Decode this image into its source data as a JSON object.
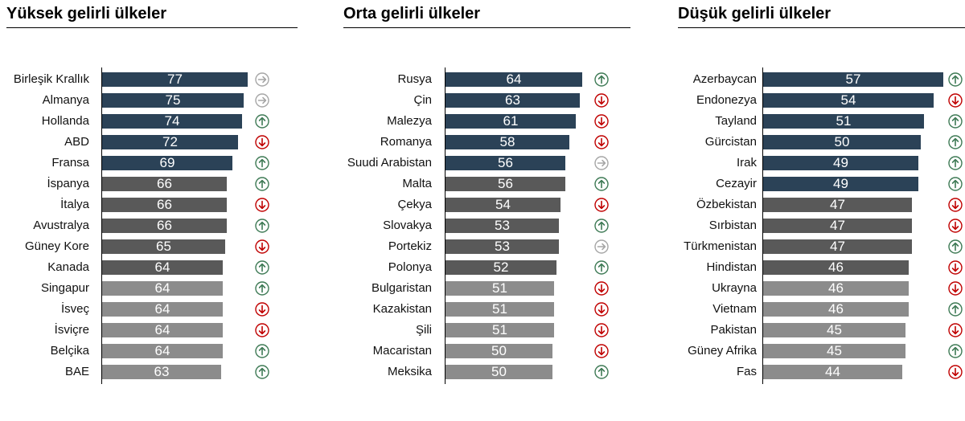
{
  "chart_data": [
    {
      "type": "bar",
      "orientation": "horizontal",
      "title": "Yüksek gelirli ülkeler",
      "xlim": [
        0,
        77
      ],
      "categories": [
        "Birleşik Krallık",
        "Almanya",
        "Hollanda",
        "ABD",
        "Fransa",
        "İspanya",
        "İtalya",
        "Avustralya",
        "Güney Kore",
        "Kanada",
        "Singapur",
        "İsveç",
        "İsviçre",
        "Belçika",
        "BAE"
      ],
      "values": [
        77,
        75,
        74,
        72,
        69,
        66,
        66,
        66,
        65,
        64,
        64,
        64,
        64,
        64,
        63
      ],
      "tiers": [
        "top",
        "top",
        "top",
        "top",
        "top",
        "mid",
        "mid",
        "mid",
        "mid",
        "mid",
        "low",
        "low",
        "low",
        "low",
        "low"
      ],
      "trends": [
        "flat",
        "flat",
        "up",
        "down",
        "up",
        "up",
        "down",
        "up",
        "down",
        "up",
        "up",
        "down",
        "down",
        "up",
        "up"
      ]
    },
    {
      "type": "bar",
      "orientation": "horizontal",
      "title": "Orta gelirli ülkeler",
      "xlim": [
        0,
        64
      ],
      "categories": [
        "Rusya",
        "Çin",
        "Malezya",
        "Romanya",
        "Suudi Arabistan",
        "Malta",
        "Çekya",
        "Slovakya",
        "Portekiz",
        "Polonya",
        "Bulgaristan",
        "Kazakistan",
        "Şili",
        "Macaristan",
        "Meksika"
      ],
      "values": [
        64,
        63,
        61,
        58,
        56,
        56,
        54,
        53,
        53,
        52,
        51,
        51,
        51,
        50,
        50
      ],
      "tiers": [
        "top",
        "top",
        "top",
        "top",
        "top",
        "mid",
        "mid",
        "mid",
        "mid",
        "mid",
        "low",
        "low",
        "low",
        "low",
        "low"
      ],
      "trends": [
        "up",
        "down",
        "down",
        "down",
        "flat",
        "up",
        "down",
        "up",
        "flat",
        "up",
        "down",
        "down",
        "down",
        "down",
        "up"
      ]
    },
    {
      "type": "bar",
      "orientation": "horizontal",
      "title": "Düşük gelirli ülkeler",
      "xlim": [
        0,
        57
      ],
      "categories": [
        "Azerbaycan",
        "Endonezya",
        "Tayland",
        "Gürcistan",
        "Irak",
        "Cezayir",
        "Özbekistan",
        "Sırbistan",
        "Türkmenistan",
        "Hindistan",
        "Ukrayna",
        "Vietnam",
        "Pakistan",
        "Güney Afrika",
        "Fas"
      ],
      "values": [
        57,
        54,
        51,
        50,
        49,
        49,
        47,
        47,
        47,
        46,
        46,
        46,
        45,
        45,
        44
      ],
      "tiers": [
        "top",
        "top",
        "top",
        "top",
        "top",
        "top",
        "mid",
        "mid",
        "mid",
        "mid",
        "low",
        "low",
        "low",
        "low",
        "low"
      ],
      "trends": [
        "up",
        "down",
        "up",
        "up",
        "up",
        "up",
        "down",
        "down",
        "up",
        "down",
        "down",
        "up",
        "down",
        "up",
        "down"
      ]
    }
  ],
  "colors": {
    "top": "#2b4257",
    "mid": "#595959",
    "low": "#8c8c8c",
    "up": "#3e7a55",
    "down": "#c00000",
    "flat": "#a6a6a6"
  }
}
